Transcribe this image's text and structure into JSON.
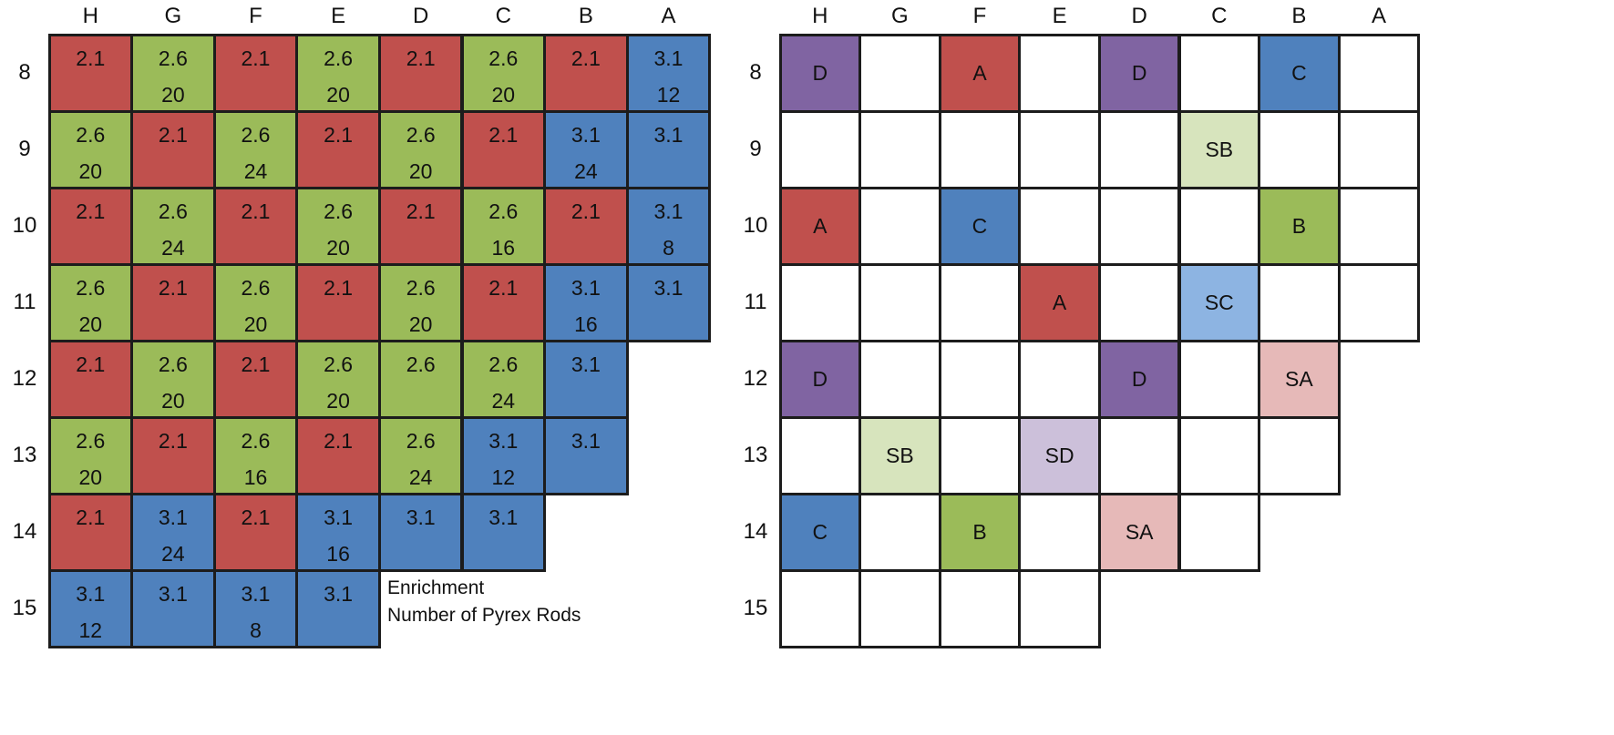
{
  "colors": {
    "red": "#c0504d",
    "green": "#9bbb59",
    "blue": "#4f81bd",
    "purple": "#8064a2",
    "light_green": "#d7e4bd",
    "light_blue": "#8db4e2",
    "light_red": "#e6b9b8",
    "light_purple": "#ccc0da",
    "white": "#ffffff",
    "border": "#1c1c1c"
  },
  "columns": [
    "H",
    "G",
    "F",
    "E",
    "D",
    "C",
    "B",
    "A"
  ],
  "rows": [
    "8",
    "9",
    "10",
    "11",
    "12",
    "13",
    "14",
    "15"
  ],
  "left_grid": [
    [
      {
        "c": "red",
        "e": "2.1"
      },
      {
        "c": "green",
        "e": "2.6",
        "p": "20"
      },
      {
        "c": "red",
        "e": "2.1"
      },
      {
        "c": "green",
        "e": "2.6",
        "p": "20"
      },
      {
        "c": "red",
        "e": "2.1"
      },
      {
        "c": "green",
        "e": "2.6",
        "p": "20"
      },
      {
        "c": "red",
        "e": "2.1"
      },
      {
        "c": "blue",
        "e": "3.1",
        "p": "12"
      }
    ],
    [
      {
        "c": "green",
        "e": "2.6",
        "p": "20"
      },
      {
        "c": "red",
        "e": "2.1"
      },
      {
        "c": "green",
        "e": "2.6",
        "p": "24"
      },
      {
        "c": "red",
        "e": "2.1"
      },
      {
        "c": "green",
        "e": "2.6",
        "p": "20"
      },
      {
        "c": "red",
        "e": "2.1"
      },
      {
        "c": "blue",
        "e": "3.1",
        "p": "24"
      },
      {
        "c": "blue",
        "e": "3.1"
      }
    ],
    [
      {
        "c": "red",
        "e": "2.1"
      },
      {
        "c": "green",
        "e": "2.6",
        "p": "24"
      },
      {
        "c": "red",
        "e": "2.1"
      },
      {
        "c": "green",
        "e": "2.6",
        "p": "20"
      },
      {
        "c": "red",
        "e": "2.1"
      },
      {
        "c": "green",
        "e": "2.6",
        "p": "16"
      },
      {
        "c": "red",
        "e": "2.1"
      },
      {
        "c": "blue",
        "e": "3.1",
        "p": "8"
      }
    ],
    [
      {
        "c": "green",
        "e": "2.6",
        "p": "20"
      },
      {
        "c": "red",
        "e": "2.1"
      },
      {
        "c": "green",
        "e": "2.6",
        "p": "20"
      },
      {
        "c": "red",
        "e": "2.1"
      },
      {
        "c": "green",
        "e": "2.6",
        "p": "20"
      },
      {
        "c": "red",
        "e": "2.1"
      },
      {
        "c": "blue",
        "e": "3.1",
        "p": "16"
      },
      {
        "c": "blue",
        "e": "3.1"
      }
    ],
    [
      {
        "c": "red",
        "e": "2.1"
      },
      {
        "c": "green",
        "e": "2.6",
        "p": "20"
      },
      {
        "c": "red",
        "e": "2.1"
      },
      {
        "c": "green",
        "e": "2.6",
        "p": "20"
      },
      {
        "c": "green",
        "e": "2.6"
      },
      {
        "c": "green",
        "e": "2.6",
        "p": "24"
      },
      {
        "c": "blue",
        "e": "3.1"
      }
    ],
    [
      {
        "c": "green",
        "e": "2.6",
        "p": "20"
      },
      {
        "c": "red",
        "e": "2.1"
      },
      {
        "c": "green",
        "e": "2.6",
        "p": "16"
      },
      {
        "c": "red",
        "e": "2.1"
      },
      {
        "c": "green",
        "e": "2.6",
        "p": "24"
      },
      {
        "c": "blue",
        "e": "3.1",
        "p": "12"
      },
      {
        "c": "blue",
        "e": "3.1"
      }
    ],
    [
      {
        "c": "red",
        "e": "2.1"
      },
      {
        "c": "blue",
        "e": "3.1",
        "p": "24"
      },
      {
        "c": "red",
        "e": "2.1"
      },
      {
        "c": "blue",
        "e": "3.1",
        "p": "16"
      },
      {
        "c": "blue",
        "e": "3.1"
      },
      {
        "c": "blue",
        "e": "3.1"
      }
    ],
    [
      {
        "c": "blue",
        "e": "3.1",
        "p": "12"
      },
      {
        "c": "blue",
        "e": "3.1"
      },
      {
        "c": "blue",
        "e": "3.1",
        "p": "8"
      },
      {
        "c": "blue",
        "e": "3.1"
      }
    ]
  ],
  "legend": {
    "line1": "Enrichment",
    "line2": "Number of Pyrex Rods"
  },
  "right_grid": [
    [
      {
        "c": "purple",
        "t": "D"
      },
      {
        "c": "white",
        "t": ""
      },
      {
        "c": "red",
        "t": "A"
      },
      {
        "c": "white",
        "t": ""
      },
      {
        "c": "purple",
        "t": "D"
      },
      {
        "c": "white",
        "t": ""
      },
      {
        "c": "blue",
        "t": "C"
      },
      {
        "c": "white",
        "t": ""
      }
    ],
    [
      {
        "c": "white",
        "t": ""
      },
      {
        "c": "white",
        "t": ""
      },
      {
        "c": "white",
        "t": ""
      },
      {
        "c": "white",
        "t": ""
      },
      {
        "c": "white",
        "t": ""
      },
      {
        "c": "light_green",
        "t": "SB"
      },
      {
        "c": "white",
        "t": ""
      },
      {
        "c": "white",
        "t": ""
      }
    ],
    [
      {
        "c": "red",
        "t": "A"
      },
      {
        "c": "white",
        "t": ""
      },
      {
        "c": "blue",
        "t": "C"
      },
      {
        "c": "white",
        "t": ""
      },
      {
        "c": "white",
        "t": ""
      },
      {
        "c": "white",
        "t": ""
      },
      {
        "c": "green",
        "t": "B"
      },
      {
        "c": "white",
        "t": ""
      }
    ],
    [
      {
        "c": "white",
        "t": ""
      },
      {
        "c": "white",
        "t": ""
      },
      {
        "c": "white",
        "t": ""
      },
      {
        "c": "red",
        "t": "A"
      },
      {
        "c": "white",
        "t": ""
      },
      {
        "c": "light_blue",
        "t": "SC"
      },
      {
        "c": "white",
        "t": ""
      },
      {
        "c": "white",
        "t": ""
      }
    ],
    [
      {
        "c": "purple",
        "t": "D"
      },
      {
        "c": "white",
        "t": ""
      },
      {
        "c": "white",
        "t": ""
      },
      {
        "c": "white",
        "t": ""
      },
      {
        "c": "purple",
        "t": "D"
      },
      {
        "c": "white",
        "t": ""
      },
      {
        "c": "light_red",
        "t": "SA"
      }
    ],
    [
      {
        "c": "white",
        "t": ""
      },
      {
        "c": "light_green",
        "t": "SB"
      },
      {
        "c": "white",
        "t": ""
      },
      {
        "c": "light_purple",
        "t": "SD"
      },
      {
        "c": "white",
        "t": ""
      },
      {
        "c": "white",
        "t": ""
      },
      {
        "c": "white",
        "t": ""
      }
    ],
    [
      {
        "c": "blue",
        "t": "C"
      },
      {
        "c": "white",
        "t": ""
      },
      {
        "c": "green",
        "t": "B"
      },
      {
        "c": "white",
        "t": ""
      },
      {
        "c": "light_red",
        "t": "SA"
      },
      {
        "c": "white",
        "t": ""
      }
    ],
    [
      {
        "c": "white",
        "t": ""
      },
      {
        "c": "white",
        "t": ""
      },
      {
        "c": "white",
        "t": ""
      },
      {
        "c": "white",
        "t": ""
      }
    ]
  ]
}
